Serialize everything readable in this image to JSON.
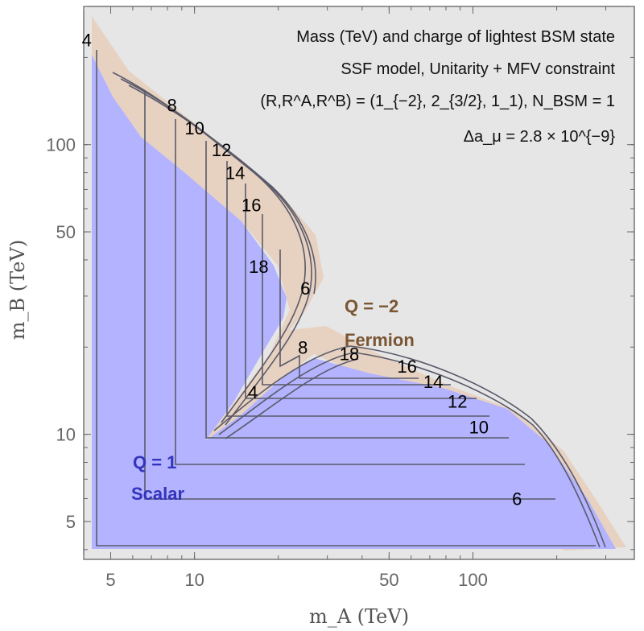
{
  "chart_data": {
    "type": "contour",
    "xlabel": "m_A (TeV)",
    "ylabel": "m_B (TeV)",
    "x_scale": "log",
    "y_scale": "log",
    "xlim": [
      4,
      380
    ],
    "ylim": [
      3.7,
      300
    ],
    "x_ticks": [
      5,
      10,
      50,
      100
    ],
    "y_ticks": [
      5,
      10,
      50,
      100
    ],
    "info_lines": [
      "Mass (TeV) and charge of lightest BSM state",
      "SSF model, Unitarity + MFV constraint",
      "(R,R^A,R^B) = (1_{−2}, 2_{3/2}, 1_1), N_BSM = 1",
      "Δa_μ = 2.8 × 10^{−9}"
    ],
    "regions": [
      {
        "label_top": "Q = 1",
        "label_bottom": "Scalar",
        "color": "#b3b3ff"
      },
      {
        "label_top": "Q = −2",
        "label_bottom": "Fermion",
        "color": "#e7d2c1"
      }
    ],
    "colors": {
      "scalar": "#b3b3ff",
      "fermion": "#e7d2c1",
      "excluded": "#e6e6e6",
      "contour": "#5a5a6a",
      "scalar_text": "#3333bb",
      "fermion_text": "#7a5533"
    },
    "contour_labels": [
      {
        "text": "4",
        "x": 4.1,
        "y": 230
      },
      {
        "text": "8",
        "x": 8.3,
        "y": 137
      },
      {
        "text": "10",
        "x": 10.0,
        "y": 114
      },
      {
        "text": "12",
        "x": 12.5,
        "y": 96
      },
      {
        "text": "14",
        "x": 14.0,
        "y": 80
      },
      {
        "text": "16",
        "x": 16.0,
        "y": 62
      },
      {
        "text": "18",
        "x": 17.0,
        "y": 38
      },
      {
        "text": "6",
        "x": 25.0,
        "y": 32
      },
      {
        "text": "8",
        "x": 24.5,
        "y": 20
      },
      {
        "text": "4",
        "x": 16.2,
        "y": 14.0
      },
      {
        "text": "18",
        "x": 36.0,
        "y": 19
      },
      {
        "text": "16",
        "x": 58.0,
        "y": 17.2
      },
      {
        "text": "14",
        "x": 72.0,
        "y": 15.2
      },
      {
        "text": "12",
        "x": 88.0,
        "y": 13.0
      },
      {
        "text": "10",
        "x": 105.0,
        "y": 10.6
      },
      {
        "text": "6",
        "x": 144.0,
        "y": 6.0
      }
    ]
  }
}
